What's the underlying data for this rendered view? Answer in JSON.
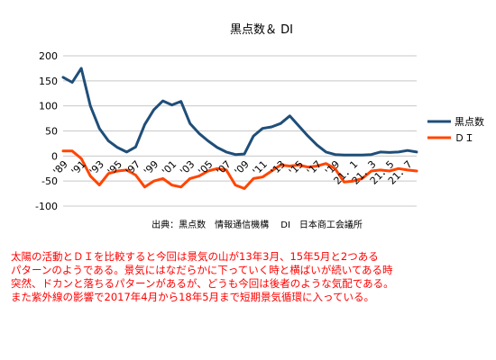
{
  "chart_data": {
    "type": "line",
    "title": "黒点数＆ DI",
    "ylim": [
      -100,
      200
    ],
    "y_ticks": [
      200,
      150,
      100,
      50,
      0,
      -50,
      -100
    ],
    "grid": true,
    "legend_position": "right",
    "x_tick_labels": [
      "'89",
      "'91",
      "'93",
      "'95",
      "'97",
      "'99",
      "'01",
      "'03",
      "'05",
      "'07",
      "'09",
      "'11",
      "'13",
      "'15",
      "'17",
      "'19",
      "21．1",
      "21．3",
      "21．5",
      "21．7"
    ],
    "series": [
      {
        "name": "黒点数",
        "color": "#1f4e79",
        "values": [
          157,
          147,
          175,
          100,
          55,
          30,
          17,
          8,
          18,
          63,
          92,
          110,
          102,
          109,
          65,
          45,
          30,
          17,
          8,
          3,
          4,
          40,
          55,
          58,
          65,
          80,
          60,
          40,
          22,
          8,
          3,
          2,
          2,
          2,
          3,
          8,
          7,
          8,
          11,
          8
        ]
      },
      {
        "name": "ＤＩ",
        "color": "#ff4500",
        "values": [
          10,
          10,
          -5,
          -40,
          -58,
          -35,
          -30,
          -28,
          -38,
          -62,
          -50,
          -45,
          -58,
          -62,
          -45,
          -40,
          -30,
          -25,
          -28,
          -58,
          -65,
          -45,
          -42,
          -30,
          -18,
          -20,
          -18,
          -22,
          -20,
          -15,
          -25,
          -52,
          -50,
          -45,
          -30,
          -28,
          -30,
          -25,
          -28,
          -30
        ]
      }
    ],
    "source_text": "出典：黒点数　情報通信機構　 DI　日本商工会議所"
  },
  "note_lines": [
    "太陽の活動とＤＩを比較すると今回は景気の山が13年3月、15年5月と2つある",
    "パターンのようである。景気にはなだらかに下っていく時と横ばいが続いてある時",
    "突然、ドカンと落ちるパターンがあるが、どうも今回は後者のような気配である。",
    "また紫外線の影響で2017年4月から18年5月まで短期景気循環に入っている。"
  ]
}
